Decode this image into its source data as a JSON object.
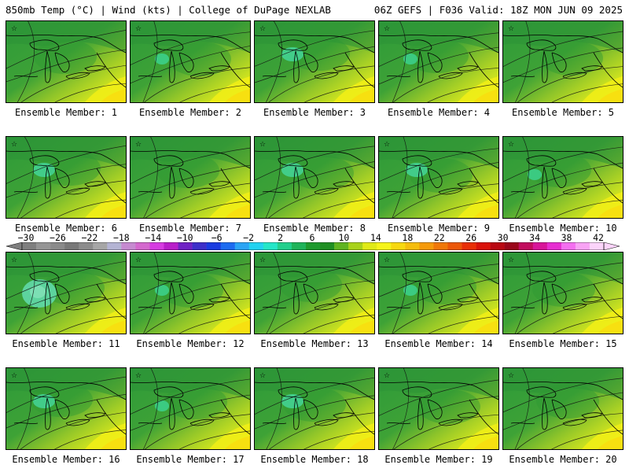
{
  "header": {
    "left": "850mb Temp (°C) | Wind (kts) | College of DuPage NEXLAB",
    "right": "06Z GEFS | F036 Valid: 18Z MON JUN 09 2025"
  },
  "panels": [
    {
      "label": "Ensemble Member: 1",
      "cold_spot": 0
    },
    {
      "label": "Ensemble Member: 2",
      "cold_spot": 1
    },
    {
      "label": "Ensemble Member: 3",
      "cold_spot": 2
    },
    {
      "label": "Ensemble Member: 4",
      "cold_spot": 1
    },
    {
      "label": "Ensemble Member: 5",
      "cold_spot": 0
    },
    {
      "label": "Ensemble Member: 6",
      "cold_spot": 2
    },
    {
      "label": "Ensemble Member: 7",
      "cold_spot": 0
    },
    {
      "label": "Ensemble Member: 8",
      "cold_spot": 2
    },
    {
      "label": "Ensemble Member: 9",
      "cold_spot": 2
    },
    {
      "label": "Ensemble Member: 10",
      "cold_spot": 1
    },
    {
      "label": "Ensemble Member: 11",
      "cold_spot": 3
    },
    {
      "label": "Ensemble Member: 12",
      "cold_spot": 1
    },
    {
      "label": "Ensemble Member: 13",
      "cold_spot": 0
    },
    {
      "label": "Ensemble Member: 14",
      "cold_spot": 1
    },
    {
      "label": "Ensemble Member: 15",
      "cold_spot": 0
    },
    {
      "label": "Ensemble Member: 16",
      "cold_spot": 2
    },
    {
      "label": "Ensemble Member: 17",
      "cold_spot": 1
    },
    {
      "label": "Ensemble Member: 18",
      "cold_spot": 2
    },
    {
      "label": "Ensemble Member: 19",
      "cold_spot": 0
    },
    {
      "label": "Ensemble Member: 20",
      "cold_spot": 0
    }
  ],
  "colorbar": {
    "labels": [
      "−30",
      "−26",
      "−22",
      "−18",
      "−14",
      "−10",
      "−6",
      "−2",
      "2",
      "6",
      "10",
      "14",
      "18",
      "22",
      "26",
      "30",
      "34",
      "38",
      "42"
    ],
    "colors": [
      "#7f7f7f",
      "#959595",
      "#8a8a8a",
      "#787878",
      "#8c8c8c",
      "#a6a6a6",
      "#b4b4d4",
      "#c68ad0",
      "#d468ce",
      "#d63be1",
      "#b81ec9",
      "#6f22c4",
      "#3d2fc9",
      "#1a3be0",
      "#1c6bf0",
      "#2aa4f4",
      "#22d2f0",
      "#24e6c8",
      "#22cf8c",
      "#1fb35a",
      "#1e9a2e",
      "#1f8f22",
      "#5fb420",
      "#a8d21a",
      "#e0ea16",
      "#f6f41a",
      "#f7d80f",
      "#f5bd0c",
      "#f59a0a",
      "#f07808",
      "#ec5708",
      "#e82f06",
      "#d9120a",
      "#b90812",
      "#9a061a",
      "#c10c5e",
      "#d81599",
      "#e62dd1",
      "#f46ff0",
      "#f8a3f4",
      "#fbd4fa"
    ]
  }
}
